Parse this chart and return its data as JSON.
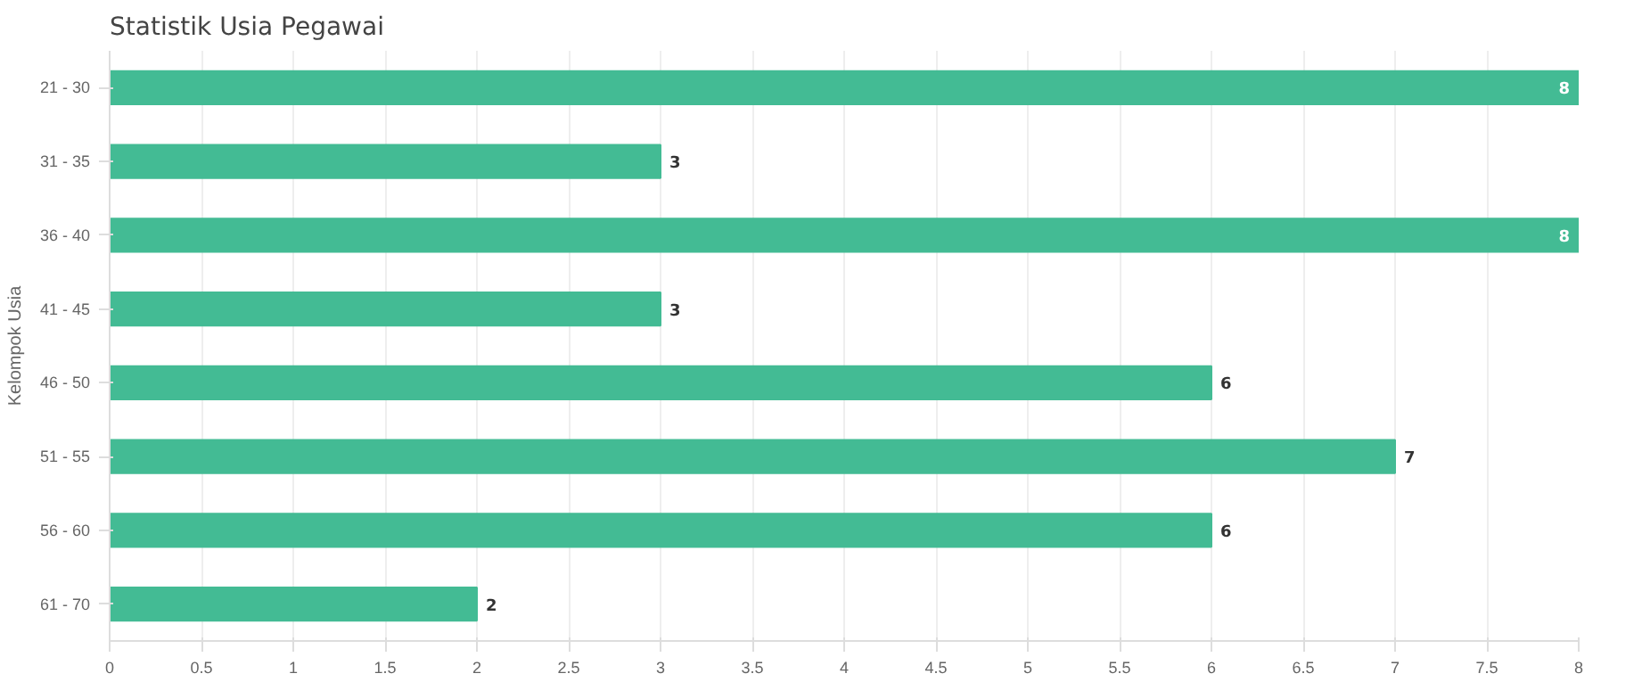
{
  "chart_data": {
    "type": "bar",
    "orientation": "horizontal",
    "title": "Statistik Usia Pegawai",
    "ylabel": "Kelompok Usia",
    "categories": [
      "21 - 30",
      "31 - 35",
      "36 - 40",
      "41 - 45",
      "46 - 50",
      "51 - 55",
      "56 - 60",
      "61 - 70"
    ],
    "values": [
      8,
      3,
      8,
      3,
      6,
      7,
      6,
      2
    ],
    "color": "#43bb94",
    "xlim": [
      0,
      8
    ],
    "xticks": [
      0,
      0.5,
      1,
      1.5,
      2,
      2.5,
      3,
      3.5,
      4,
      4.5,
      5,
      5.5,
      6,
      6.5,
      7,
      7.5,
      8
    ],
    "grid": "x",
    "data_labels": true
  }
}
